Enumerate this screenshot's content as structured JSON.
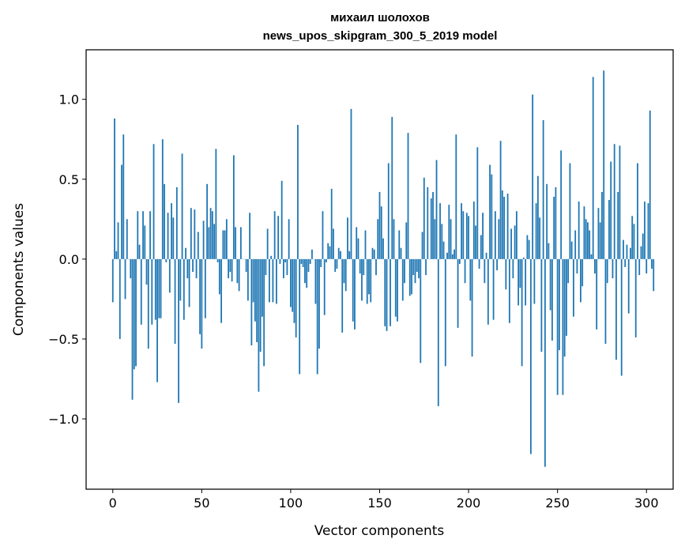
{
  "chart_data": {
    "type": "bar",
    "title": "михаил шолохов",
    "subtitle": "news_upos_skipgram_300_5_2019 model",
    "xlabel": "Vector components",
    "ylabel": "Components values",
    "xlim": [
      -15,
      315
    ],
    "ylim": [
      -1.44,
      1.31
    ],
    "xticks": [
      0,
      50,
      100,
      150,
      200,
      250,
      300
    ],
    "xtick_labels": [
      "0",
      "50",
      "100",
      "150",
      "200",
      "250",
      "300"
    ],
    "yticks": [
      -1.0,
      -0.5,
      0.0,
      0.5,
      1.0
    ],
    "ytick_labels": [
      "−1.0",
      "−0.5",
      "0.0",
      "0.5",
      "1.0"
    ],
    "grid": false,
    "bar_color": "#1f77b4",
    "values": [
      -0.27,
      0.88,
      0.05,
      0.23,
      -0.5,
      0.59,
      0.78,
      -0.25,
      0.25,
      0.0,
      -0.12,
      -0.88,
      -0.69,
      -0.67,
      0.3,
      0.09,
      -0.41,
      0.3,
      0.21,
      -0.16,
      -0.56,
      0.3,
      -0.41,
      0.72,
      -0.38,
      -0.77,
      -0.37,
      -0.37,
      0.75,
      0.47,
      -0.02,
      0.29,
      -0.21,
      0.35,
      0.26,
      -0.53,
      0.45,
      -0.9,
      -0.26,
      0.66,
      -0.38,
      0.07,
      -0.12,
      -0.3,
      0.32,
      -0.08,
      0.31,
      -0.12,
      0.17,
      -0.47,
      -0.56,
      0.24,
      -0.37,
      0.47,
      0.2,
      0.32,
      0.3,
      0.22,
      0.69,
      -0.02,
      -0.22,
      -0.4,
      0.18,
      0.18,
      0.25,
      -0.12,
      -0.08,
      -0.14,
      0.65,
      0.2,
      -0.15,
      -0.2,
      0.2,
      0.0,
      0.0,
      -0.08,
      -0.26,
      0.29,
      -0.54,
      -0.27,
      -0.39,
      -0.52,
      -0.83,
      -0.58,
      -0.36,
      -0.67,
      -0.1,
      0.19,
      -0.27,
      0.02,
      -0.27,
      0.3,
      -0.28,
      0.27,
      -0.03,
      0.49,
      -0.12,
      -0.02,
      -0.1,
      0.25,
      -0.3,
      -0.33,
      -0.4,
      -0.49,
      0.84,
      -0.72,
      -0.03,
      -0.05,
      -0.15,
      -0.18,
      -0.08,
      -0.03,
      0.06,
      0.0,
      -0.28,
      -0.72,
      -0.56,
      -0.05,
      0.3,
      -0.35,
      -0.02,
      0.1,
      0.08,
      0.44,
      0.19,
      -0.08,
      -0.06,
      0.07,
      0.05,
      -0.46,
      -0.15,
      -0.2,
      0.26,
      0.05,
      0.94,
      -0.39,
      -0.44,
      0.2,
      0.13,
      -0.09,
      -0.26,
      -0.1,
      0.18,
      -0.28,
      -0.22,
      -0.27,
      0.07,
      0.06,
      -0.1,
      0.25,
      0.42,
      0.33,
      0.13,
      -0.42,
      -0.45,
      0.6,
      -0.42,
      0.89,
      0.25,
      -0.36,
      -0.39,
      0.18,
      0.07,
      -0.26,
      -0.15,
      0.23,
      0.79,
      -0.23,
      -0.22,
      -0.1,
      -0.15,
      -0.08,
      -0.12,
      -0.65,
      0.17,
      0.51,
      -0.1,
      0.45,
      0.0,
      0.38,
      0.42,
      0.25,
      0.62,
      -0.92,
      0.35,
      0.22,
      0.11,
      -0.67,
      0.04,
      0.34,
      0.25,
      0.03,
      0.06,
      0.78,
      -0.43,
      -0.03,
      0.35,
      0.3,
      -0.15,
      0.29,
      0.27,
      -0.26,
      -0.61,
      0.36,
      0.21,
      0.7,
      -0.06,
      0.15,
      0.29,
      -0.15,
      0.04,
      -0.41,
      0.59,
      0.53,
      -0.38,
      0.3,
      -0.07,
      0.25,
      0.74,
      0.43,
      0.39,
      -0.19,
      0.41,
      -0.4,
      0.19,
      -0.12,
      0.21,
      0.3,
      -0.29,
      -0.18,
      -0.67,
      0.01,
      -0.29,
      0.15,
      0.12,
      -1.22,
      1.03,
      -0.28,
      0.35,
      0.52,
      0.26,
      -0.58,
      0.87,
      -1.3,
      0.47,
      0.1,
      -0.32,
      -0.51,
      0.39,
      0.45,
      -0.85,
      -0.57,
      0.68,
      -0.85,
      -0.61,
      -0.48,
      -0.15,
      0.6,
      0.11,
      -0.36,
      0.18,
      -0.09,
      0.36,
      -0.27,
      -0.17,
      0.33,
      0.25,
      0.23,
      0.18,
      0.03,
      1.14,
      -0.09,
      -0.44,
      0.32,
      0.23,
      0.42,
      1.18,
      -0.53,
      -0.15,
      0.37,
      0.61,
      -0.12,
      0.72,
      -0.63,
      0.42,
      0.71,
      -0.73,
      0.12,
      -0.05,
      0.09,
      -0.34,
      0.07,
      0.27,
      0.22,
      -0.49,
      0.6,
      -0.1,
      0.08,
      0.16,
      0.36,
      -0.09,
      0.35,
      0.93,
      -0.06,
      -0.2
    ]
  }
}
